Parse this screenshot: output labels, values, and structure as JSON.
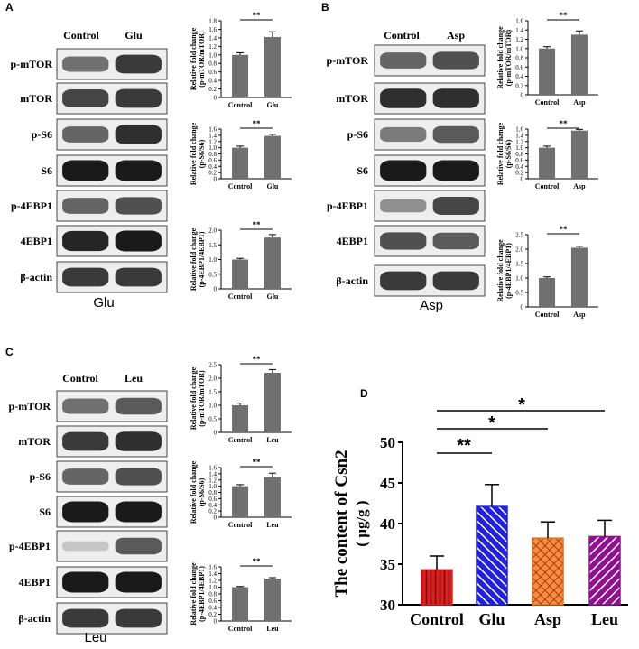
{
  "panels": [
    {
      "letter": "A",
      "groups": [
        "Control",
        "Glu"
      ],
      "footer": "Glu",
      "blots": [
        "p-mTOR",
        "mTOR",
        "p-S6",
        "S6",
        "p-4EBP1",
        "4EBP1",
        "β-actin"
      ],
      "bands": [
        [
          0.55,
          0.8
        ],
        [
          0.75,
          0.8
        ],
        [
          0.6,
          0.85
        ],
        [
          0.95,
          0.95
        ],
        [
          0.6,
          0.7
        ],
        [
          0.9,
          0.95
        ],
        [
          0.8,
          0.8
        ]
      ]
    },
    {
      "letter": "B",
      "groups": [
        "Control",
        "Asp"
      ],
      "footer": "Asp",
      "blots": [
        "p-mTOR",
        "mTOR",
        "p-S6",
        "S6",
        "p-4EBP1",
        "4EBP1",
        "β-actin"
      ],
      "bands": [
        [
          0.6,
          0.7
        ],
        [
          0.85,
          0.85
        ],
        [
          0.5,
          0.65
        ],
        [
          0.95,
          0.95
        ],
        [
          0.4,
          0.75
        ],
        [
          0.7,
          0.65
        ],
        [
          0.8,
          0.8
        ]
      ]
    },
    {
      "letter": "C",
      "groups": [
        "Control",
        "Leu"
      ],
      "footer": "Leu",
      "blots": [
        "p-mTOR",
        "mTOR",
        "p-S6",
        "S6",
        "p-4EBP1",
        "4EBP1",
        "β-actin"
      ],
      "bands": [
        [
          0.55,
          0.65
        ],
        [
          0.8,
          0.85
        ],
        [
          0.6,
          0.7
        ],
        [
          0.95,
          0.95
        ],
        [
          0.15,
          0.65
        ],
        [
          0.95,
          0.95
        ],
        [
          0.8,
          0.8
        ]
      ]
    }
  ],
  "panel_d_letter": "D",
  "chart_data": [
    {
      "type": "bar",
      "panel": "A",
      "categories": [
        "Control",
        "Glu"
      ],
      "values": [
        1.0,
        1.42
      ],
      "errors": [
        0.05,
        0.12
      ],
      "ylabel": "Relative fold change",
      "ylabel2": "(p-mTOR/mTOR)",
      "ylim": [
        0,
        1.8
      ],
      "ticks": [
        0,
        0.2,
        0.4,
        0.6,
        0.8,
        1.0,
        1.2,
        1.4,
        1.6,
        1.8
      ],
      "sig": "**"
    },
    {
      "type": "bar",
      "panel": "A",
      "categories": [
        "Control",
        "Glu"
      ],
      "values": [
        1.0,
        1.38
      ],
      "errors": [
        0.05,
        0.05
      ],
      "ylabel": "Relative fold change",
      "ylabel2": "(p-S6/S6)",
      "ylim": [
        0,
        1.6
      ],
      "ticks": [
        0,
        0.2,
        0.4,
        0.6,
        0.8,
        1.0,
        1.2,
        1.4,
        1.6
      ],
      "sig": "**"
    },
    {
      "type": "bar",
      "panel": "A",
      "categories": [
        "Control",
        "Glu"
      ],
      "values": [
        1.0,
        1.75
      ],
      "errors": [
        0.04,
        0.1
      ],
      "ylabel": "Relative fold change",
      "ylabel2": "(p-4EBP1/4EBP1)",
      "ylim": [
        0,
        2.0
      ],
      "ticks": [
        0,
        0.5,
        1.0,
        1.5,
        2.0
      ],
      "sig": "**"
    },
    {
      "type": "bar",
      "panel": "B",
      "categories": [
        "Control",
        "Asp"
      ],
      "values": [
        1.0,
        1.3
      ],
      "errors": [
        0.04,
        0.08
      ],
      "ylabel": "Relative fold change",
      "ylabel2": "(p-mTOR/mTOR)",
      "ylim": [
        0,
        1.6
      ],
      "ticks": [
        0,
        0.2,
        0.4,
        0.6,
        0.8,
        1.0,
        1.2,
        1.4,
        1.6
      ],
      "sig": "**"
    },
    {
      "type": "bar",
      "panel": "B",
      "categories": [
        "Control",
        "Asp"
      ],
      "values": [
        1.0,
        1.55
      ],
      "errors": [
        0.05,
        0.04
      ],
      "ylabel": "Relative fold change",
      "ylabel2": "(p-S6/S6)",
      "ylim": [
        0,
        1.6
      ],
      "ticks": [
        0,
        0.2,
        0.4,
        0.6,
        0.8,
        1.0,
        1.2,
        1.4,
        1.6
      ],
      "sig": "**"
    },
    {
      "type": "bar",
      "panel": "B",
      "categories": [
        "Control",
        "Asp"
      ],
      "values": [
        1.0,
        2.05
      ],
      "errors": [
        0.04,
        0.05
      ],
      "ylabel": "Relative fold change",
      "ylabel2": "(p-4EBP1/4EBP1)",
      "ylim": [
        0,
        2.5
      ],
      "ticks": [
        0,
        0.5,
        1.0,
        1.5,
        2.0,
        2.5
      ],
      "sig": "**"
    },
    {
      "type": "bar",
      "panel": "C",
      "categories": [
        "Control",
        "Leu"
      ],
      "values": [
        1.0,
        2.2
      ],
      "errors": [
        0.08,
        0.12
      ],
      "ylabel": "Relative fold change",
      "ylabel2": "(p-mTOR/mTOR)",
      "ylim": [
        0,
        2.5
      ],
      "ticks": [
        0,
        0.5,
        1.0,
        1.5,
        2.0,
        2.5
      ],
      "sig": "**"
    },
    {
      "type": "bar",
      "panel": "C",
      "categories": [
        "Control",
        "Leu"
      ],
      "values": [
        1.0,
        1.3
      ],
      "errors": [
        0.05,
        0.12
      ],
      "ylabel": "Relative fold change",
      "ylabel2": "(p-S6/S6)",
      "ylim": [
        0,
        1.6
      ],
      "ticks": [
        0,
        0.2,
        0.4,
        0.6,
        0.8,
        1.0,
        1.2,
        1.4,
        1.6
      ],
      "sig": "**"
    },
    {
      "type": "bar",
      "panel": "C",
      "categories": [
        "Control",
        "Leu"
      ],
      "values": [
        1.0,
        1.25
      ],
      "errors": [
        0.02,
        0.03
      ],
      "ylabel": "Relative fold change",
      "ylabel2": "(p-4EBP1/4EBP1)",
      "ylim": [
        0,
        1.6
      ],
      "ticks": [
        0,
        0.2,
        0.4,
        0.6,
        0.8,
        1.0,
        1.2,
        1.4,
        1.6
      ],
      "sig": "**"
    },
    {
      "type": "bar",
      "panel": "D",
      "categories": [
        "Control",
        "Glu",
        "Asp",
        "Leu"
      ],
      "values": [
        34.3,
        42.1,
        38.2,
        38.4
      ],
      "errors": [
        1.7,
        2.7,
        2.0,
        2.0
      ],
      "ylabel": "The content of Csn2",
      "ylabel2": "( μg/g )",
      "ylim": [
        30,
        50
      ],
      "ticks": [
        30,
        35,
        40,
        45,
        50
      ],
      "colors": [
        "#e02020",
        "#2020e0",
        "#e07010",
        "#901090"
      ],
      "fills": [
        "vertical",
        "diagonal",
        "crosshatch",
        "diagonal-rev"
      ],
      "sig": [
        {
          "from": 0,
          "to": 1,
          "label": "**"
        },
        {
          "from": 0,
          "to": 2,
          "label": "*"
        },
        {
          "from": 0,
          "to": 3,
          "label": "*"
        }
      ]
    }
  ]
}
